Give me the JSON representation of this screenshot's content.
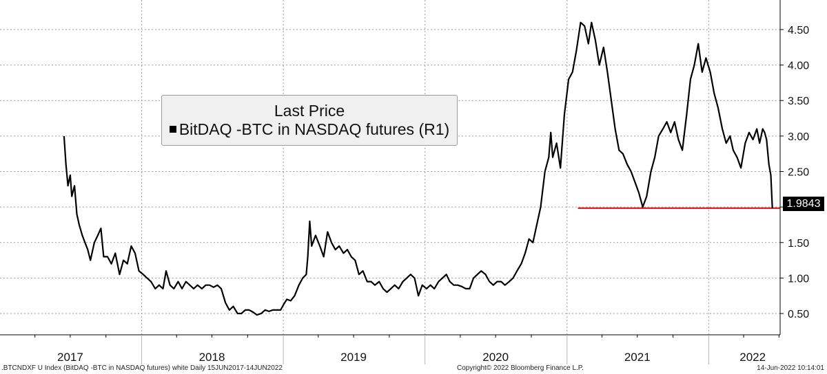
{
  "chart_data": {
    "type": "line",
    "title": "",
    "legend": {
      "title": "Last Price",
      "entry": "BitDAQ -BTC in NASDAQ futures  (R1)",
      "placement": "top-left"
    },
    "xlabel": "",
    "ylabel": "",
    "y_axis_side": "right",
    "ylim": [
      0.2,
      4.8
    ],
    "yticks": [
      0.5,
      1.0,
      1.5,
      2.0,
      2.5,
      3.0,
      3.5,
      4.0,
      4.5
    ],
    "ytick_labels": [
      "0.50",
      "1.00",
      "1.50",
      "",
      "2.50",
      "3.00",
      "3.50",
      "4.00",
      "4.50"
    ],
    "x_range": [
      "2017-01-01",
      "2022-07-04"
    ],
    "year_labels": [
      "2017",
      "2018",
      "2019",
      "2020",
      "2021",
      "2022"
    ],
    "grid": true,
    "line_color": "#000000",
    "reference_line": {
      "value": 1.9843,
      "color": "#e00000",
      "from": "2021-01-29",
      "to": "2022-06-14"
    },
    "last_value_label": "1.9843",
    "series": [
      {
        "values": [
          [
            "2017-06-15",
            3.0
          ],
          [
            "2017-06-20",
            2.6
          ],
          [
            "2017-06-25",
            2.3
          ],
          [
            "2017-07-01",
            2.45
          ],
          [
            "2017-07-05",
            2.15
          ],
          [
            "2017-07-12",
            2.3
          ],
          [
            "2017-07-18",
            1.9
          ],
          [
            "2017-07-24",
            1.75
          ],
          [
            "2017-08-01",
            1.6
          ],
          [
            "2017-08-08",
            1.5
          ],
          [
            "2017-08-15",
            1.4
          ],
          [
            "2017-08-22",
            1.25
          ],
          [
            "2017-09-01",
            1.5
          ],
          [
            "2017-09-10",
            1.6
          ],
          [
            "2017-09-18",
            1.7
          ],
          [
            "2017-09-25",
            1.3
          ],
          [
            "2017-10-05",
            1.3
          ],
          [
            "2017-10-15",
            1.2
          ],
          [
            "2017-10-25",
            1.35
          ],
          [
            "2017-11-05",
            1.05
          ],
          [
            "2017-11-15",
            1.25
          ],
          [
            "2017-11-25",
            1.2
          ],
          [
            "2017-12-05",
            1.45
          ],
          [
            "2017-12-15",
            1.35
          ],
          [
            "2017-12-25",
            1.1
          ],
          [
            "2018-01-05",
            1.05
          ],
          [
            "2018-01-15",
            1.0
          ],
          [
            "2018-01-25",
            0.95
          ],
          [
            "2018-02-05",
            0.85
          ],
          [
            "2018-02-15",
            0.9
          ],
          [
            "2018-02-25",
            0.85
          ],
          [
            "2018-03-05",
            1.1
          ],
          [
            "2018-03-15",
            0.9
          ],
          [
            "2018-03-25",
            0.85
          ],
          [
            "2018-04-05",
            0.95
          ],
          [
            "2018-04-15",
            0.85
          ],
          [
            "2018-04-25",
            0.95
          ],
          [
            "2018-05-05",
            0.9
          ],
          [
            "2018-05-15",
            0.85
          ],
          [
            "2018-05-25",
            0.9
          ],
          [
            "2018-06-05",
            0.85
          ],
          [
            "2018-06-15",
            0.9
          ],
          [
            "2018-06-25",
            0.9
          ],
          [
            "2018-07-05",
            0.87
          ],
          [
            "2018-07-15",
            0.9
          ],
          [
            "2018-07-25",
            0.85
          ],
          [
            "2018-08-05",
            0.65
          ],
          [
            "2018-08-15",
            0.55
          ],
          [
            "2018-08-25",
            0.6
          ],
          [
            "2018-09-05",
            0.5
          ],
          [
            "2018-09-15",
            0.5
          ],
          [
            "2018-09-25",
            0.55
          ],
          [
            "2018-10-05",
            0.55
          ],
          [
            "2018-10-15",
            0.52
          ],
          [
            "2018-10-25",
            0.48
          ],
          [
            "2018-11-05",
            0.5
          ],
          [
            "2018-11-15",
            0.55
          ],
          [
            "2018-11-25",
            0.53
          ],
          [
            "2018-12-05",
            0.55
          ],
          [
            "2018-12-15",
            0.55
          ],
          [
            "2018-12-25",
            0.55
          ],
          [
            "2019-01-01",
            0.62
          ],
          [
            "2019-01-10",
            0.7
          ],
          [
            "2019-01-20",
            0.68
          ],
          [
            "2019-01-30",
            0.75
          ],
          [
            "2019-02-10",
            0.9
          ],
          [
            "2019-02-20",
            1.0
          ],
          [
            "2019-03-01",
            1.05
          ],
          [
            "2019-03-05",
            1.3
          ],
          [
            "2019-03-10",
            1.8
          ],
          [
            "2019-03-15",
            1.45
          ],
          [
            "2019-03-25",
            1.6
          ],
          [
            "2019-04-05",
            1.45
          ],
          [
            "2019-04-15",
            1.3
          ],
          [
            "2019-04-25",
            1.65
          ],
          [
            "2019-05-05",
            1.5
          ],
          [
            "2019-05-15",
            1.4
          ],
          [
            "2019-05-25",
            1.45
          ],
          [
            "2019-06-05",
            1.35
          ],
          [
            "2019-06-15",
            1.4
          ],
          [
            "2019-06-25",
            1.3
          ],
          [
            "2019-07-05",
            1.25
          ],
          [
            "2019-07-15",
            1.05
          ],
          [
            "2019-07-25",
            1.1
          ],
          [
            "2019-08-05",
            0.95
          ],
          [
            "2019-08-15",
            0.95
          ],
          [
            "2019-08-25",
            0.9
          ],
          [
            "2019-09-05",
            0.95
          ],
          [
            "2019-09-15",
            0.85
          ],
          [
            "2019-09-25",
            0.8
          ],
          [
            "2019-10-05",
            0.85
          ],
          [
            "2019-10-15",
            0.9
          ],
          [
            "2019-10-25",
            0.85
          ],
          [
            "2019-11-05",
            0.95
          ],
          [
            "2019-11-15",
            1.0
          ],
          [
            "2019-11-25",
            1.05
          ],
          [
            "2019-12-05",
            1.0
          ],
          [
            "2019-12-15",
            0.75
          ],
          [
            "2019-12-25",
            0.9
          ],
          [
            "2020-01-05",
            0.85
          ],
          [
            "2020-01-15",
            0.9
          ],
          [
            "2020-01-25",
            0.85
          ],
          [
            "2020-02-05",
            0.95
          ],
          [
            "2020-02-15",
            1.0
          ],
          [
            "2020-02-25",
            1.05
          ],
          [
            "2020-03-05",
            0.95
          ],
          [
            "2020-03-15",
            0.9
          ],
          [
            "2020-03-25",
            0.9
          ],
          [
            "2020-04-05",
            0.88
          ],
          [
            "2020-04-15",
            0.85
          ],
          [
            "2020-04-25",
            0.85
          ],
          [
            "2020-05-05",
            1.0
          ],
          [
            "2020-05-15",
            1.05
          ],
          [
            "2020-05-25",
            1.1
          ],
          [
            "2020-06-05",
            1.05
          ],
          [
            "2020-06-15",
            0.95
          ],
          [
            "2020-06-25",
            0.9
          ],
          [
            "2020-07-05",
            0.95
          ],
          [
            "2020-07-15",
            0.95
          ],
          [
            "2020-07-25",
            0.9
          ],
          [
            "2020-08-05",
            0.95
          ],
          [
            "2020-08-15",
            1.0
          ],
          [
            "2020-08-25",
            1.1
          ],
          [
            "2020-09-05",
            1.2
          ],
          [
            "2020-09-15",
            1.35
          ],
          [
            "2020-09-25",
            1.55
          ],
          [
            "2020-10-05",
            1.5
          ],
          [
            "2020-10-15",
            1.75
          ],
          [
            "2020-10-25",
            2.0
          ],
          [
            "2020-11-05",
            2.5
          ],
          [
            "2020-11-15",
            2.7
          ],
          [
            "2020-11-20",
            3.05
          ],
          [
            "2020-11-25",
            2.7
          ],
          [
            "2020-12-05",
            2.9
          ],
          [
            "2020-12-15",
            2.55
          ],
          [
            "2020-12-25",
            3.3
          ],
          [
            "2021-01-05",
            3.8
          ],
          [
            "2021-01-15",
            3.9
          ],
          [
            "2021-01-25",
            4.2
          ],
          [
            "2021-02-05",
            4.6
          ],
          [
            "2021-02-15",
            4.55
          ],
          [
            "2021-02-25",
            4.3
          ],
          [
            "2021-03-05",
            4.6
          ],
          [
            "2021-03-15",
            4.35
          ],
          [
            "2021-03-25",
            4.0
          ],
          [
            "2021-04-05",
            4.25
          ],
          [
            "2021-04-15",
            3.9
          ],
          [
            "2021-04-25",
            3.5
          ],
          [
            "2021-05-05",
            3.1
          ],
          [
            "2021-05-15",
            2.8
          ],
          [
            "2021-05-25",
            2.75
          ],
          [
            "2021-06-05",
            2.6
          ],
          [
            "2021-06-15",
            2.5
          ],
          [
            "2021-06-25",
            2.35
          ],
          [
            "2021-07-05",
            2.2
          ],
          [
            "2021-07-10",
            2.1
          ],
          [
            "2021-07-15",
            2.0
          ],
          [
            "2021-07-25",
            2.15
          ],
          [
            "2021-08-05",
            2.5
          ],
          [
            "2021-08-15",
            2.7
          ],
          [
            "2021-08-25",
            3.0
          ],
          [
            "2021-09-05",
            3.1
          ],
          [
            "2021-09-15",
            3.2
          ],
          [
            "2021-09-25",
            3.05
          ],
          [
            "2021-10-05",
            3.2
          ],
          [
            "2021-10-15",
            2.95
          ],
          [
            "2021-10-25",
            2.8
          ],
          [
            "2021-11-05",
            3.3
          ],
          [
            "2021-11-15",
            3.8
          ],
          [
            "2021-11-25",
            4.0
          ],
          [
            "2021-12-05",
            4.3
          ],
          [
            "2021-12-15",
            3.9
          ],
          [
            "2021-12-25",
            4.1
          ],
          [
            "2022-01-05",
            3.9
          ],
          [
            "2022-01-15",
            3.6
          ],
          [
            "2022-01-25",
            3.4
          ],
          [
            "2022-02-05",
            3.1
          ],
          [
            "2022-02-15",
            2.9
          ],
          [
            "2022-02-25",
            3.0
          ],
          [
            "2022-03-05",
            2.8
          ],
          [
            "2022-03-15",
            2.7
          ],
          [
            "2022-03-25",
            2.55
          ],
          [
            "2022-04-05",
            2.9
          ],
          [
            "2022-04-15",
            3.05
          ],
          [
            "2022-04-25",
            2.95
          ],
          [
            "2022-05-05",
            3.1
          ],
          [
            "2022-05-12",
            2.9
          ],
          [
            "2022-05-20",
            3.1
          ],
          [
            "2022-05-25",
            3.05
          ],
          [
            "2022-05-30",
            2.95
          ],
          [
            "2022-06-05",
            2.6
          ],
          [
            "2022-06-10",
            2.45
          ],
          [
            "2022-06-14",
            1.9843
          ]
        ]
      }
    ]
  },
  "footer": {
    "left": ".BTCNDXF U Index (BitDAQ -BTC in NASDAQ futures) white  Daily 15JUN2017-14JUN2022",
    "center": "Copyright© 2022 Bloomberg Finance L.P.",
    "right": "14-Jun-2022 10:14:01"
  }
}
